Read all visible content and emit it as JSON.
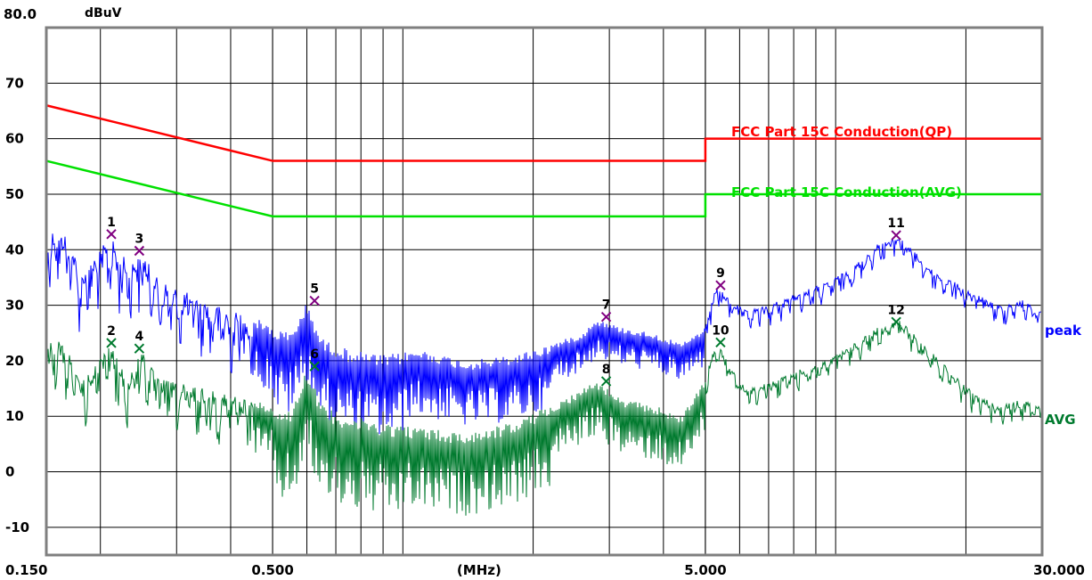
{
  "chart_data": {
    "type": "line",
    "title": "",
    "ylabel": "dBuV",
    "xlabel": "(MHz)",
    "x_scale": "log",
    "xlim": [
      0.15,
      30.0
    ],
    "ylim": [
      -15,
      80
    ],
    "y_top_label": "80.0",
    "x_tick_labels": [
      {
        "value": 0.15,
        "label": "0.150"
      },
      {
        "value": 0.5,
        "label": "0.500"
      },
      {
        "value": 1.5,
        "label": "(MHz)"
      },
      {
        "value": 5.0,
        "label": "5.000"
      },
      {
        "value": 30.0,
        "label": "30.000"
      }
    ],
    "y_ticks": [
      70,
      60,
      50,
      40,
      30,
      20,
      10,
      0,
      -10
    ],
    "grid": true,
    "limit_lines": [
      {
        "name": "FCC Part 15C  Conduction(QP)",
        "color": "#ff0000",
        "points": [
          [
            0.15,
            66
          ],
          [
            0.5,
            56
          ],
          [
            5.0,
            56
          ],
          [
            5.0,
            60
          ],
          [
            30.0,
            60
          ]
        ]
      },
      {
        "name": "FCC Part 15C  Conduction(AVG)",
        "color": "#00e000",
        "points": [
          [
            0.15,
            56
          ],
          [
            0.5,
            46
          ],
          [
            5.0,
            46
          ],
          [
            5.0,
            50
          ],
          [
            30.0,
            50
          ]
        ]
      }
    ],
    "series": [
      {
        "name": "peak",
        "color": "#0000ff",
        "envelope": [
          [
            0.15,
            43
          ],
          [
            0.16,
            44
          ],
          [
            0.17,
            42
          ],
          [
            0.18,
            36
          ],
          [
            0.19,
            38
          ],
          [
            0.2,
            40
          ],
          [
            0.21,
            42.5
          ],
          [
            0.23,
            38
          ],
          [
            0.25,
            39.5
          ],
          [
            0.27,
            35
          ],
          [
            0.3,
            33
          ],
          [
            0.35,
            31
          ],
          [
            0.4,
            29
          ],
          [
            0.45,
            28
          ],
          [
            0.5,
            26
          ],
          [
            0.55,
            25
          ],
          [
            0.6,
            30.5
          ],
          [
            0.65,
            24
          ],
          [
            0.75,
            22
          ],
          [
            0.9,
            21
          ],
          [
            1.1,
            22
          ],
          [
            1.4,
            20
          ],
          [
            1.8,
            21
          ],
          [
            2.2,
            23
          ],
          [
            2.6,
            25
          ],
          [
            2.8,
            27.5
          ],
          [
            3.2,
            26
          ],
          [
            3.8,
            25
          ],
          [
            4.4,
            23
          ],
          [
            5.0,
            26
          ],
          [
            5.3,
            33.5
          ],
          [
            5.7,
            31
          ],
          [
            6.2,
            29
          ],
          [
            7.0,
            30
          ],
          [
            8.0,
            32
          ],
          [
            9.5,
            34
          ],
          [
            11.0,
            37
          ],
          [
            12.5,
            41
          ],
          [
            14.0,
            42.5
          ],
          [
            15.5,
            39
          ],
          [
            17.0,
            36
          ],
          [
            19.0,
            34
          ],
          [
            21.0,
            32
          ],
          [
            24.0,
            30
          ],
          [
            27.0,
            31
          ],
          [
            30.0,
            29
          ]
        ]
      },
      {
        "name": "AVG",
        "color": "#007a2e",
        "envelope": [
          [
            0.15,
            23
          ],
          [
            0.16,
            24
          ],
          [
            0.17,
            21
          ],
          [
            0.18,
            16
          ],
          [
            0.19,
            18
          ],
          [
            0.2,
            21
          ],
          [
            0.21,
            23
          ],
          [
            0.23,
            17
          ],
          [
            0.25,
            22
          ],
          [
            0.27,
            17
          ],
          [
            0.3,
            16
          ],
          [
            0.35,
            15
          ],
          [
            0.4,
            14
          ],
          [
            0.45,
            13
          ],
          [
            0.5,
            12
          ],
          [
            0.55,
            11
          ],
          [
            0.6,
            19
          ],
          [
            0.65,
            12
          ],
          [
            0.75,
            10
          ],
          [
            0.9,
            9
          ],
          [
            1.1,
            8
          ],
          [
            1.4,
            7
          ],
          [
            1.8,
            9
          ],
          [
            2.2,
            12
          ],
          [
            2.6,
            15
          ],
          [
            2.8,
            16.5
          ],
          [
            3.2,
            13
          ],
          [
            3.8,
            12
          ],
          [
            4.4,
            10
          ],
          [
            5.0,
            17
          ],
          [
            5.3,
            23.5
          ],
          [
            5.7,
            19
          ],
          [
            6.2,
            15
          ],
          [
            7.0,
            16
          ],
          [
            8.0,
            18
          ],
          [
            9.5,
            20
          ],
          [
            11.0,
            23
          ],
          [
            12.5,
            26
          ],
          [
            14.0,
            27.5
          ],
          [
            15.5,
            24
          ],
          [
            17.0,
            21
          ],
          [
            19.0,
            17
          ],
          [
            21.0,
            14
          ],
          [
            24.0,
            12
          ],
          [
            27.0,
            13
          ],
          [
            30.0,
            12
          ]
        ]
      }
    ],
    "markers": [
      {
        "label": "1",
        "x": 0.212,
        "y": 42.8,
        "color": "#800080"
      },
      {
        "label": "2",
        "x": 0.212,
        "y": 23.2,
        "color": "#007a2e"
      },
      {
        "label": "3",
        "x": 0.246,
        "y": 39.8,
        "color": "#800080"
      },
      {
        "label": "4",
        "x": 0.246,
        "y": 22.2,
        "color": "#007a2e"
      },
      {
        "label": "5",
        "x": 0.625,
        "y": 30.8,
        "color": "#800080"
      },
      {
        "label": "6",
        "x": 0.625,
        "y": 19.0,
        "color": "#007a2e"
      },
      {
        "label": "7",
        "x": 2.95,
        "y": 27.9,
        "color": "#800080"
      },
      {
        "label": "8",
        "x": 2.95,
        "y": 16.3,
        "color": "#007a2e"
      },
      {
        "label": "9",
        "x": 5.42,
        "y": 33.6,
        "color": "#800080"
      },
      {
        "label": "10",
        "x": 5.42,
        "y": 23.3,
        "color": "#007a2e"
      },
      {
        "label": "11",
        "x": 13.8,
        "y": 42.6,
        "color": "#800080"
      },
      {
        "label": "12",
        "x": 13.8,
        "y": 27.0,
        "color": "#007a2e"
      }
    ]
  }
}
